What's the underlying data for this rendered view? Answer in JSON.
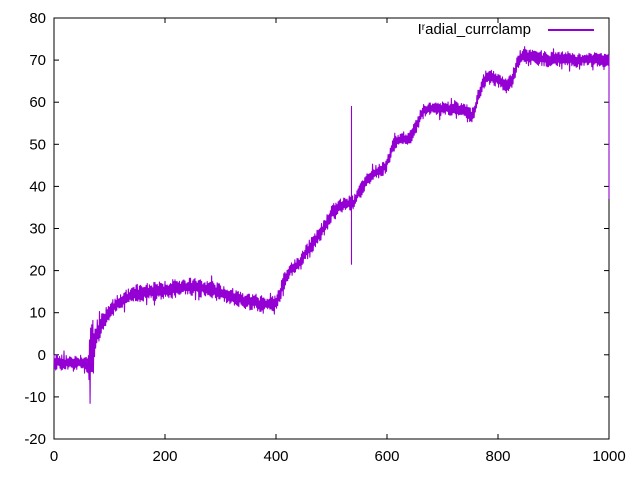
{
  "chart": {
    "background_color": "#ffffff",
    "axis_color": "#000000",
    "text_color": "#000000"
  },
  "legend": {
    "prefix": "I",
    "superscript": "r",
    "rest": "adial_currclamp",
    "display_text": "Iʳadial_currclamp"
  },
  "chart_data": {
    "type": "line",
    "title": "",
    "xlabel": "",
    "ylabel": "",
    "xlim": [
      0,
      1000
    ],
    "ylim": [
      -20,
      80
    ],
    "x_ticks": [
      0,
      200,
      400,
      600,
      800,
      1000
    ],
    "y_ticks": [
      -20,
      -10,
      0,
      10,
      20,
      30,
      40,
      50,
      60,
      70,
      80
    ],
    "grid": false,
    "legend_position": "top-right",
    "anchor_format": "[x, mean_value, noise_amplitude]",
    "series": [
      {
        "name": "I^radial_currclamp",
        "color": "#9400d3",
        "anchors": [
          [
            0,
            -1.8,
            1.8
          ],
          [
            40,
            -1.9,
            1.8
          ],
          [
            58,
            -2,
            1.8
          ],
          [
            62,
            -2.2,
            3
          ],
          [
            64,
            -2,
            11
          ],
          [
            67,
            -0.5,
            10
          ],
          [
            70,
            1.5,
            7
          ],
          [
            74,
            3.5,
            4.5
          ],
          [
            80,
            5.5,
            3
          ],
          [
            90,
            8,
            2.5
          ],
          [
            100,
            10.3,
            2.2
          ],
          [
            115,
            12.2,
            2
          ],
          [
            130,
            13.5,
            2
          ],
          [
            150,
            14.5,
            2.2
          ],
          [
            175,
            15,
            2.2
          ],
          [
            200,
            15.3,
            2.2
          ],
          [
            225,
            15.9,
            2.2
          ],
          [
            250,
            16.1,
            2.2
          ],
          [
            275,
            15.7,
            2.2
          ],
          [
            300,
            14.8,
            2.1
          ],
          [
            325,
            13.7,
            2
          ],
          [
            345,
            12.8,
            2
          ],
          [
            365,
            12.3,
            1.9
          ],
          [
            385,
            11.9,
            1.9
          ],
          [
            398,
            12.1,
            1.9
          ],
          [
            404,
            13.3,
            2
          ],
          [
            412,
            16.5,
            2.1
          ],
          [
            420,
            19.3,
            2
          ],
          [
            428,
            20.4,
            1.9
          ],
          [
            436,
            20.9,
            1.9
          ],
          [
            444,
            22.1,
            2
          ],
          [
            452,
            23.8,
            2
          ],
          [
            462,
            25.8,
            2
          ],
          [
            472,
            27.4,
            2
          ],
          [
            482,
            29.2,
            2
          ],
          [
            492,
            31.5,
            2
          ],
          [
            502,
            33.8,
            1.9
          ],
          [
            510,
            34.9,
            1.8
          ],
          [
            518,
            35.6,
            1.8
          ],
          [
            528,
            35.9,
            1.8
          ],
          [
            540,
            36.1,
            1.8
          ],
          [
            546,
            37.8,
            1.9
          ],
          [
            554,
            39.4,
            1.9
          ],
          [
            562,
            41.1,
            1.8
          ],
          [
            572,
            42.7,
            1.8
          ],
          [
            582,
            43.5,
            1.8
          ],
          [
            592,
            44,
            1.8
          ],
          [
            600,
            45.5,
            1.8
          ],
          [
            608,
            48.5,
            1.8
          ],
          [
            615,
            50.5,
            1.8
          ],
          [
            625,
            51.2,
            1.8
          ],
          [
            635,
            51.3,
            1.8
          ],
          [
            645,
            52,
            1.9
          ],
          [
            653,
            54.3,
            1.9
          ],
          [
            660,
            56.6,
            1.8
          ],
          [
            668,
            58.2,
            1.7
          ],
          [
            680,
            58.6,
            1.7
          ],
          [
            695,
            58.4,
            1.7
          ],
          [
            710,
            58.5,
            1.7
          ],
          [
            725,
            58.4,
            1.7
          ],
          [
            740,
            58.3,
            1.7
          ],
          [
            752,
            56.8,
            1.8
          ],
          [
            758,
            58,
            1.9
          ],
          [
            765,
            61.5,
            2
          ],
          [
            772,
            64.3,
            1.9
          ],
          [
            779,
            66.1,
            1.8
          ],
          [
            788,
            65.9,
            1.8
          ],
          [
            798,
            65.4,
            1.8
          ],
          [
            808,
            64.7,
            1.8
          ],
          [
            816,
            63.9,
            1.8
          ],
          [
            823,
            64.8,
            1.9
          ],
          [
            830,
            67.1,
            2
          ],
          [
            838,
            70.3,
            1.9
          ],
          [
            845,
            71,
            1.8
          ],
          [
            860,
            70.6,
            1.8
          ],
          [
            880,
            70.3,
            1.8
          ],
          [
            900,
            70.1,
            1.8
          ],
          [
            920,
            70.3,
            1.8
          ],
          [
            940,
            70,
            1.8
          ],
          [
            960,
            70.2,
            1.8
          ],
          [
            980,
            70,
            1.8
          ],
          [
            1000,
            70.1,
            1.8
          ]
        ],
        "spikes": [
          {
            "x": 536,
            "top": 59,
            "bottom": 21.5
          }
        ],
        "end_drop_to": 37
      }
    ]
  }
}
